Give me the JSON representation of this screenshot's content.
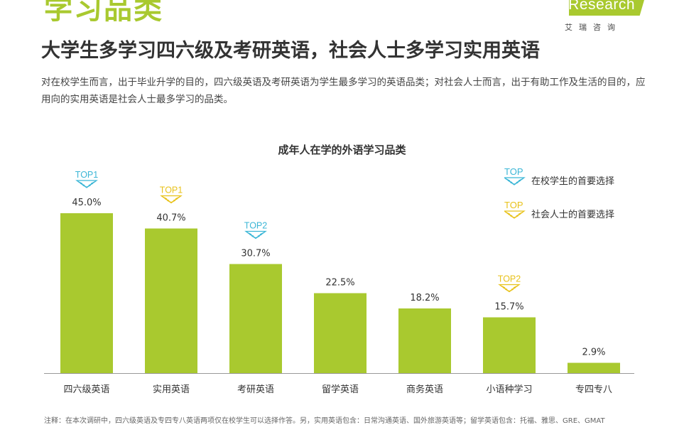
{
  "header": {
    "section_title": "学习品类",
    "main_title": "大学生多学习四六级及考研英语，社会人士多学习实用英语",
    "description": "对在校学生而言，出于毕业升学的目的，四六级英语及考研英语为学生最多学习的英语品类；对社会人士而言，出于有助工作及生活的目的，应用向的实用英语是社会人士最多学习的品类。"
  },
  "logo": {
    "text": "iResearch",
    "cn": "艾瑞咨询",
    "color": "#a9c92f"
  },
  "legend": {
    "items": [
      {
        "badge": "TOP",
        "label": "在校学生的首要选择",
        "color": "#3bb6d6"
      },
      {
        "badge": "TOP",
        "label": "社会人士的首要选择",
        "color": "#e8c21a"
      }
    ]
  },
  "chart_data": {
    "type": "bar",
    "title": "成年人在学的外语学习品类",
    "categories": [
      "四六级英语",
      "实用英语",
      "考研英语",
      "留学英语",
      "商务英语",
      "小语种学习",
      "专四专八"
    ],
    "values": [
      45.0,
      40.7,
      30.7,
      22.5,
      18.2,
      15.7,
      2.9
    ],
    "value_labels": [
      "45.0%",
      "40.7%",
      "30.7%",
      "22.5%",
      "18.2%",
      "15.7%",
      "2.9%"
    ],
    "bar_color": "#a9c92f",
    "ylim": [
      0,
      50
    ],
    "grid": false,
    "badges": [
      {
        "category_index": 0,
        "text": "TOP1",
        "group": "student",
        "color": "#3bb6d6"
      },
      {
        "category_index": 1,
        "text": "TOP1",
        "group": "social",
        "color": "#e8c21a"
      },
      {
        "category_index": 2,
        "text": "TOP2",
        "group": "student",
        "color": "#3bb6d6"
      },
      {
        "category_index": 5,
        "text": "TOP2",
        "group": "social",
        "color": "#e8c21a"
      }
    ]
  },
  "footer": {
    "note": "注释：在本次调研中，四六级英语及专四专八英语两项仅在校学生可以选择作答。另，实用英语包含：日常沟通英语、国外旅游英语等；留学英语包含：托福、雅思、GRE、GMAT"
  }
}
